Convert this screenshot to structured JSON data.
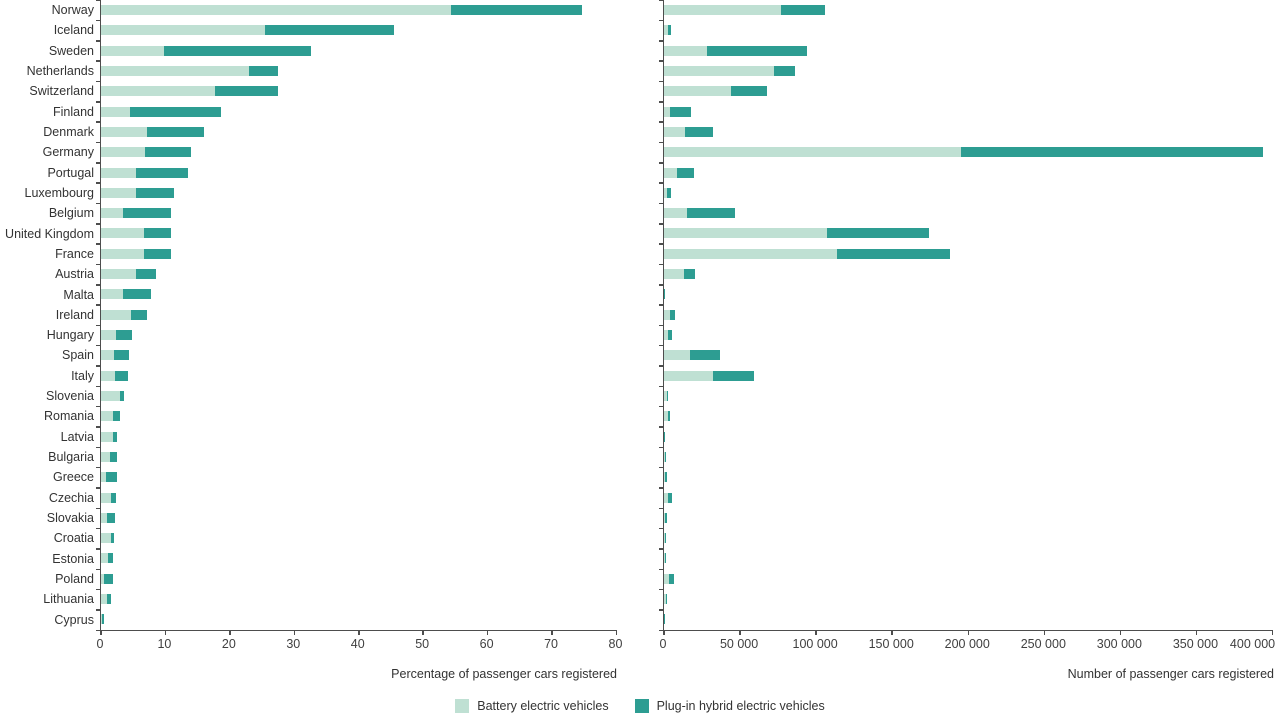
{
  "legend": {
    "items": [
      {
        "label": "Battery electric vehicles",
        "color": "#bfe0d3"
      },
      {
        "label": "Plug-in hybrid electric vehicles",
        "color": "#2d9d92"
      }
    ]
  },
  "colors": {
    "bev": "#bfe0d3",
    "phev": "#2d9d92",
    "axis": "#4d4d4d",
    "text": "#333333"
  },
  "chart_data": [
    {
      "type": "bar",
      "orientation": "horizontal",
      "stacked": true,
      "xlabel": "Percentage of passenger cars registered",
      "xlim": [
        0,
        80
      ],
      "xticks": [
        0,
        10,
        20,
        30,
        40,
        50,
        60,
        70,
        80
      ],
      "xtick_labels": [
        "0",
        "10",
        "20",
        "30",
        "40",
        "50",
        "60",
        "70",
        "80"
      ],
      "categories": [
        "Norway",
        "Iceland",
        "Sweden",
        "Netherlands",
        "Switzerland",
        "Finland",
        "Denmark",
        "Germany",
        "Portugal",
        "Luxembourg",
        "Belgium",
        "United Kingdom",
        "France",
        "Austria",
        "Malta",
        "Ireland",
        "Hungary",
        "Spain",
        "Italy",
        "Slovenia",
        "Romania",
        "Latvia",
        "Bulgaria",
        "Greece",
        "Czechia",
        "Slovakia",
        "Croatia",
        "Estonia",
        "Poland",
        "Lithuania",
        "Cyprus"
      ],
      "series": [
        {
          "name": "Battery electric vehicles",
          "values": [
            54.3,
            25.4,
            9.8,
            22.9,
            17.7,
            4.5,
            7.1,
            6.9,
            5.4,
            5.5,
            3.4,
            6.7,
            6.6,
            5.5,
            3.4,
            4.7,
            2.4,
            2.0,
            2.2,
            3.0,
            1.9,
            1.9,
            1.4,
            0.7,
            1.5,
            1.0,
            1.5,
            1.1,
            0.5,
            0.9,
            0.1
          ]
        },
        {
          "name": "Plug-in hybrid electric vehicles",
          "values": [
            20.4,
            20.0,
            22.8,
            4.5,
            9.7,
            14.1,
            8.9,
            7.0,
            8.1,
            5.9,
            7.4,
            4.1,
            4.2,
            3.1,
            4.3,
            2.4,
            2.4,
            2.4,
            2.0,
            0.5,
            1.1,
            0.6,
            1.1,
            1.8,
            0.8,
            1.1,
            0.5,
            0.8,
            1.3,
            0.6,
            0.4
          ]
        }
      ]
    },
    {
      "type": "bar",
      "orientation": "horizontal",
      "stacked": true,
      "xlabel": "Number of passenger cars registered",
      "xlim": [
        0,
        400000
      ],
      "xticks": [
        0,
        50000,
        100000,
        150000,
        200000,
        250000,
        300000,
        350000,
        400000
      ],
      "xtick_labels": [
        "0",
        "50 000",
        "100 000",
        "150 000",
        "200 000",
        "250 000",
        "300 000",
        "350 000",
        "400 000"
      ],
      "categories": [
        "Norway",
        "Iceland",
        "Sweden",
        "Netherlands",
        "Switzerland",
        "Finland",
        "Denmark",
        "Germany",
        "Portugal",
        "Luxembourg",
        "Belgium",
        "United Kingdom",
        "France",
        "Austria",
        "Malta",
        "Ireland",
        "Hungary",
        "Spain",
        "Italy",
        "Slovenia",
        "Romania",
        "Latvia",
        "Bulgaria",
        "Greece",
        "Czechia",
        "Slovakia",
        "Croatia",
        "Estonia",
        "Poland",
        "Lithuania",
        "Cyprus"
      ],
      "series": [
        {
          "name": "Battery electric vehicles",
          "values": [
            77000,
            2400,
            28000,
            72000,
            44000,
            4200,
            14000,
            195000,
            8500,
            1800,
            15000,
            107000,
            114000,
            13000,
            200,
            4000,
            2400,
            17000,
            32000,
            1700,
            2800,
            300,
            400,
            900,
            2500,
            900,
            500,
            400,
            3000,
            1000,
            100
          ]
        },
        {
          "name": "Plug-in hybrid electric vehicles",
          "values": [
            29000,
            2000,
            66000,
            14000,
            23500,
            13400,
            18000,
            199000,
            11500,
            2600,
            31500,
            67000,
            74000,
            7500,
            100,
            3000,
            3000,
            20000,
            27000,
            300,
            1300,
            100,
            300,
            1300,
            2600,
            1000,
            300,
            200,
            3800,
            300,
            100
          ]
        }
      ]
    }
  ]
}
